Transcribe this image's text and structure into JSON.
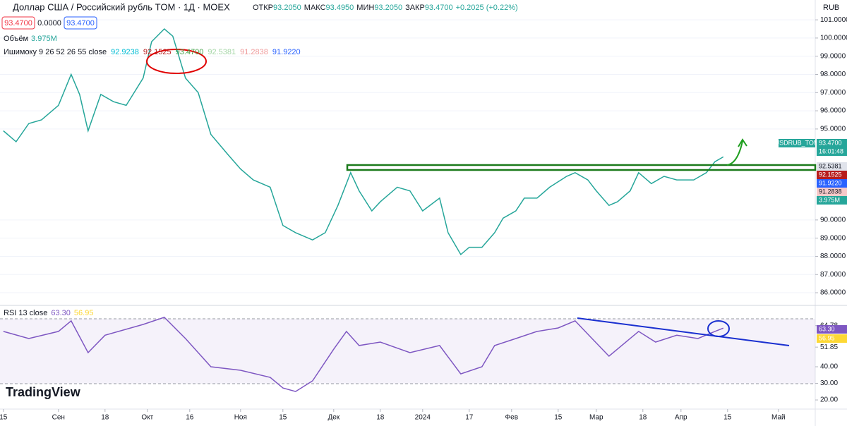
{
  "header": {
    "title": "Доллар США / Российский рубль TOM · 1Д · MOEX",
    "ohlc": [
      {
        "label": "ОТКР",
        "value": "93.2050"
      },
      {
        "label": "МАКС",
        "value": "93.4950"
      },
      {
        "label": "МИН",
        "value": "93.2050"
      },
      {
        "label": "ЗАКР",
        "value": "93.4700"
      }
    ],
    "change": "+0.2025 (+0.22%)",
    "inputs": [
      "93.4700",
      "0.0000",
      "93.4700"
    ],
    "currency": "RUB",
    "volume": {
      "label": "Объём",
      "value": "3.975M"
    },
    "ichimoku": {
      "label": "Ишимоку 9 26 52 26 55 close",
      "values": [
        "92.9238",
        "92.1525",
        "93.4700",
        "92.5381",
        "91.2838",
        "91.9220"
      ]
    },
    "rsi": {
      "label": "RSI 13 close",
      "values": [
        "63.30",
        "56.95"
      ]
    },
    "time": "16:01:48",
    "badges": [
      {
        "text": "93.4700",
        "color": "#26a69a"
      },
      {
        "text": "92.5381",
        "color": "#e0e3eb"
      },
      {
        "text": "92.1525",
        "color": "#b71c1c"
      },
      {
        "text": "91.9220",
        "color": "#2962ff"
      },
      {
        "text": "91.2838",
        "color": "#f7c9c9"
      },
      {
        "text": "3.975M",
        "color": "#26a69a"
      }
    ],
    "rsi_badges": [
      {
        "text": "63.30",
        "color": "#7e57c2"
      },
      {
        "text": "56.95",
        "color": "#fdd835"
      }
    ],
    "logo": "TradingView"
  },
  "chart_data": [
    {
      "type": "line",
      "xlim": [
        -0.8,
        191.7
      ],
      "ylim": [
        85.42,
        102.09
      ],
      "x": [
        0,
        3,
        6,
        9,
        13,
        16,
        18,
        20,
        23,
        26,
        29,
        33,
        35,
        38,
        40,
        43,
        46,
        49,
        53,
        56,
        59,
        63,
        66,
        69,
        73,
        76,
        79,
        82,
        84,
        87,
        89,
        93,
        96,
        99,
        103,
        105,
        108,
        110,
        113,
        116,
        118,
        121,
        123,
        126,
        129,
        133,
        135,
        138,
        140,
        143,
        145,
        148,
        150,
        153,
        156,
        159,
        163,
        166,
        168,
        170
      ],
      "yticks": [
        {
          "value": 101,
          "label": "101.0000"
        },
        {
          "value": 100,
          "label": "100.0000"
        },
        {
          "value": 99,
          "label": "99.0000"
        },
        {
          "value": 98,
          "label": "98.0000"
        },
        {
          "value": 97,
          "label": "97.0000"
        },
        {
          "value": 96,
          "label": "96.0000"
        },
        {
          "value": 95,
          "label": "95.0000"
        },
        {
          "value": 90,
          "label": "90.0000"
        },
        {
          "value": 89,
          "label": "89.0000"
        },
        {
          "value": 88,
          "label": "88.0000"
        },
        {
          "value": 87,
          "label": "87.0000"
        },
        {
          "value": 86,
          "label": "86.0000"
        }
      ],
      "grid": true,
      "series": [
        {
          "name": "USDRUB_TOM",
          "color": "#26a69a",
          "values": [
            94.9,
            94.3,
            95.3,
            95.5,
            96.3,
            98.0,
            96.9,
            94.9,
            96.9,
            96.5,
            96.3,
            97.8,
            99.8,
            100.5,
            100.1,
            97.8,
            97.0,
            94.7,
            93.6,
            92.8,
            92.2,
            91.8,
            89.7,
            89.3,
            88.9,
            89.3,
            90.8,
            92.6,
            91.6,
            90.5,
            91.0,
            91.8,
            91.6,
            90.5,
            91.2,
            89.3,
            88.1,
            88.5,
            88.5,
            89.3,
            90.1,
            90.5,
            91.2,
            91.2,
            91.8,
            92.4,
            92.6,
            92.2,
            91.6,
            90.8,
            91.0,
            91.6,
            92.6,
            92.0,
            92.4,
            92.2,
            92.2,
            92.6,
            93.2,
            93.47
          ]
        }
      ]
    },
    {
      "type": "line",
      "xlim": [
        -0.8,
        191.7
      ],
      "ylim": [
        14.5,
        75.3
      ],
      "x": [
        0,
        6,
        13,
        16,
        20,
        24,
        33,
        38,
        43,
        49,
        56,
        63,
        66,
        69,
        73,
        78,
        81,
        84,
        89,
        96,
        103,
        108,
        113,
        116,
        121,
        126,
        131,
        135,
        139,
        143,
        146,
        150,
        154,
        159,
        164,
        168,
        170
      ],
      "yticks": [
        64.78,
        51.85,
        {
          "value": 40,
          "label": "40.00"
        },
        {
          "value": 30,
          "label": "30.00"
        },
        {
          "value": 20,
          "label": "20.00"
        }
      ],
      "xticks": [
        {
          "value": 0,
          "label": "15"
        },
        {
          "value": 13,
          "label": "Сен"
        },
        {
          "value": 24,
          "label": "18"
        },
        {
          "value": 34,
          "label": "Окт"
        },
        {
          "value": 44,
          "label": "16"
        },
        {
          "value": 56,
          "label": "Ноя"
        },
        {
          "value": 66,
          "label": "15"
        },
        {
          "value": 78,
          "label": "Дек"
        },
        {
          "value": 89,
          "label": "18"
        },
        {
          "value": 99,
          "label": "2024"
        },
        {
          "value": 110,
          "label": "17"
        },
        {
          "value": 120,
          "label": "Фев"
        },
        {
          "value": 131,
          "label": "15"
        },
        {
          "value": 140,
          "label": "Мар"
        },
        {
          "value": 151,
          "label": "18"
        },
        {
          "value": 160,
          "label": "Апр"
        },
        {
          "value": 171,
          "label": "15"
        },
        {
          "value": 183,
          "label": "Май"
        }
      ],
      "grid": false,
      "series": [
        {
          "name": "RSI",
          "color": "#7e57c2",
          "values": [
            61.3,
            57,
            61.3,
            67.7,
            48.5,
            59,
            65.5,
            69.8,
            57,
            40,
            37.9,
            33.6,
            27.2,
            25.1,
            31.5,
            50.6,
            61.3,
            52.8,
            54.9,
            48.5,
            52.8,
            35.7,
            40,
            52.8,
            57,
            61.3,
            63.4,
            67.7,
            57,
            46.4,
            52.8,
            61.3,
            54.9,
            59,
            57,
            61.3,
            63.3
          ]
        }
      ]
    }
  ]
}
